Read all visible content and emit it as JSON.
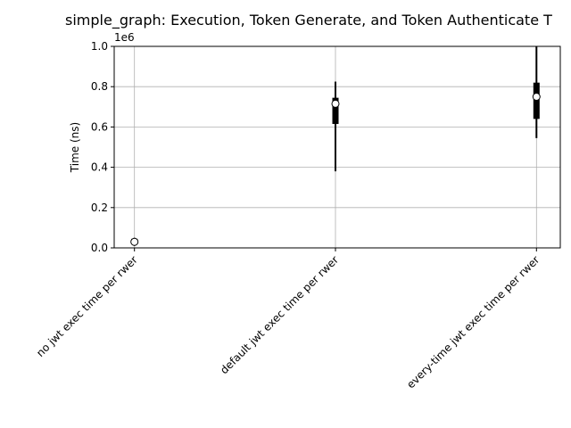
{
  "chart_data": {
    "type": "box",
    "title": "simple_graph: Execution, Token Generate, and Token Authenticate T",
    "xlabel": "",
    "ylabel": "Time (ns)",
    "y_offset_label": "1e6",
    "ylim": [
      0,
      1.0
    ],
    "yticks": [
      "0.0",
      "0.2",
      "0.4",
      "0.6",
      "0.8",
      "1.0"
    ],
    "grid": true,
    "categories": [
      "no jwt exec time per rwer",
      "default jwt exec time per rwer",
      "every-time jwt exec time per rwer"
    ],
    "boxes": [
      {
        "whisker_low": 0.01,
        "q1": 0.02,
        "median": 0.03,
        "q3": 0.045,
        "whisker_high": 0.05,
        "mean": 0.03
      },
      {
        "whisker_low": 0.38,
        "q1": 0.615,
        "median": 0.715,
        "q3": 0.745,
        "whisker_high": 0.825,
        "mean": 0.715
      },
      {
        "whisker_low": 0.545,
        "q1": 0.64,
        "median": 0.75,
        "q3": 0.82,
        "whisker_high": 1.0,
        "mean": 0.75
      }
    ],
    "colors": {
      "box": "#000000",
      "mean_fill": "#ffffff",
      "grid": "#b0b0b0"
    }
  }
}
